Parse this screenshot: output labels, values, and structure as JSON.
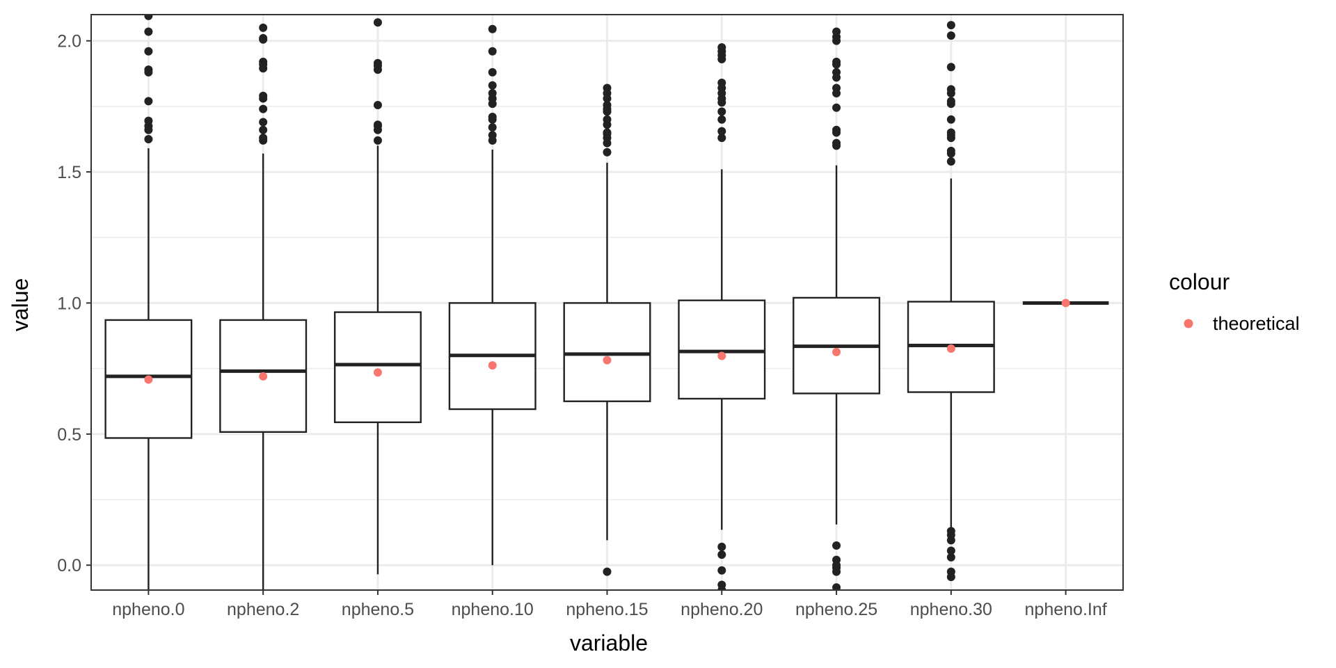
{
  "chart_data": {
    "type": "boxplot",
    "xlabel": "variable",
    "ylabel": "value",
    "ylim": [
      -0.095,
      2.1
    ],
    "y_ticks": [
      0.0,
      0.5,
      1.0,
      1.5,
      2.0
    ],
    "y_tick_labels": [
      "0.0",
      "0.5",
      "1.0",
      "1.5",
      "2.0"
    ],
    "grid": true,
    "legend": {
      "title": "colour",
      "position": "right",
      "entries": [
        {
          "label": "theoretical",
          "color": "#F8766D"
        }
      ]
    },
    "colors": {
      "box": "#222222",
      "outlier": "#222222",
      "theoretical": "#F8766D",
      "grid": "#EBEBEB"
    },
    "categories": [
      "npheno.0",
      "npheno.2",
      "npheno.5",
      "npheno.10",
      "npheno.15",
      "npheno.20",
      "npheno.25",
      "npheno.30",
      "npheno.Inf"
    ],
    "boxes": [
      {
        "category": "npheno.0",
        "whisker_low": -0.1,
        "q1": 0.485,
        "median": 0.72,
        "q3": 0.935,
        "whisker_high": 1.59,
        "outliers": [
          1.625,
          1.66,
          1.675,
          1.695,
          1.77,
          1.88,
          1.89,
          1.96,
          2.035,
          2.095
        ]
      },
      {
        "category": "npheno.2",
        "whisker_low": -0.1,
        "q1": 0.508,
        "median": 0.74,
        "q3": 0.935,
        "whisker_high": 1.57,
        "outliers": [
          1.62,
          1.63,
          1.66,
          1.69,
          1.74,
          1.78,
          1.79,
          1.895,
          1.91,
          1.92,
          2.005,
          2.01,
          2.05
        ]
      },
      {
        "category": "npheno.5",
        "whisker_low": -0.035,
        "q1": 0.545,
        "median": 0.765,
        "q3": 0.965,
        "whisker_high": 1.6,
        "outliers": [
          1.62,
          1.66,
          1.675,
          1.68,
          1.755,
          1.89,
          1.905,
          1.915,
          2.07
        ]
      },
      {
        "category": "npheno.10",
        "whisker_low": 0.0,
        "q1": 0.595,
        "median": 0.8,
        "q3": 1.0,
        "whisker_high": 1.585,
        "outliers": [
          1.62,
          1.64,
          1.67,
          1.7,
          1.71,
          1.76,
          1.78,
          1.8,
          1.83,
          1.88,
          1.96,
          2.045
        ]
      },
      {
        "category": "npheno.15",
        "whisker_low": 0.095,
        "q1": 0.625,
        "median": 0.805,
        "q3": 1.0,
        "whisker_high": 1.535,
        "outliers": [
          -0.025,
          1.575,
          1.61,
          1.63,
          1.645,
          1.65,
          1.68,
          1.7,
          1.73,
          1.74,
          1.755,
          1.78,
          1.8,
          1.82
        ]
      },
      {
        "category": "npheno.20",
        "whisker_low": 0.135,
        "q1": 0.635,
        "median": 0.815,
        "q3": 1.01,
        "whisker_high": 1.51,
        "outliers": [
          -0.095,
          -0.075,
          -0.02,
          0.04,
          0.07,
          1.63,
          1.655,
          1.7,
          1.73,
          1.765,
          1.78,
          1.8,
          1.82,
          1.84,
          1.93,
          1.945,
          1.96,
          1.975
        ]
      },
      {
        "category": "npheno.25",
        "whisker_low": 0.155,
        "q1": 0.655,
        "median": 0.835,
        "q3": 1.02,
        "whisker_high": 1.525,
        "outliers": [
          -0.085,
          -0.025,
          -0.01,
          0.0,
          0.02,
          0.075,
          1.6,
          1.61,
          1.65,
          1.66,
          1.745,
          1.8,
          1.82,
          1.86,
          1.88,
          1.91,
          1.92,
          2.0,
          2.015,
          2.035
        ]
      },
      {
        "category": "npheno.30",
        "whisker_low": 0.14,
        "q1": 0.66,
        "median": 0.838,
        "q3": 1.005,
        "whisker_high": 1.475,
        "outliers": [
          -0.045,
          -0.025,
          0.03,
          0.055,
          0.095,
          0.115,
          0.13,
          1.54,
          1.57,
          1.58,
          1.63,
          1.64,
          1.65,
          1.7,
          1.76,
          1.77,
          1.8,
          1.815,
          1.9,
          2.02,
          2.06
        ]
      },
      {
        "category": "npheno.Inf",
        "whisker_low": 1.0,
        "q1": 1.0,
        "median": 1.0,
        "q3": 1.0,
        "whisker_high": 1.0,
        "outliers": []
      }
    ],
    "series": [
      {
        "name": "theoretical",
        "values": [
          0.708,
          0.72,
          0.735,
          0.762,
          0.782,
          0.798,
          0.813,
          0.826,
          1.0
        ]
      }
    ]
  }
}
